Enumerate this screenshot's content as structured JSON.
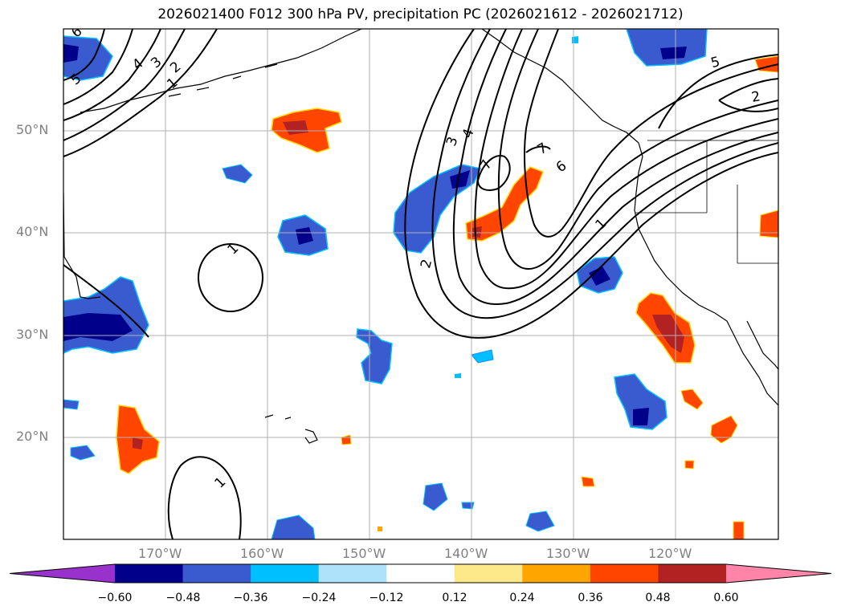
{
  "title": "2026021400 F012 300 hPa PV, precipitation PC (2026021612 - 2026021712)",
  "lon_labels": [
    "170°W",
    "160°W",
    "150°W",
    "140°W",
    "130°W",
    "120°W"
  ],
  "lat_labels": [
    "50°N",
    "40°N",
    "30°N",
    "20°N"
  ],
  "colorbar": {
    "ticks": [
      "−0.60",
      "−0.48",
      "−0.36",
      "−0.24",
      "−0.12",
      "0.12",
      "0.24",
      "0.36",
      "0.48",
      "0.60"
    ],
    "colors": [
      "#9932cc",
      "#00008b",
      "#3a5bd0",
      "#00bfff",
      "#aee2fa",
      "#ffffff",
      "#fde98a",
      "#ffa500",
      "#ff4500",
      "#b22222",
      "#ff85a8"
    ]
  },
  "contour_labels": [
    "6",
    "5",
    "4",
    "3",
    "2",
    "1",
    "1",
    "1",
    "3",
    "4",
    "7",
    "7",
    "6",
    "2",
    "1",
    "5",
    "2"
  ]
}
